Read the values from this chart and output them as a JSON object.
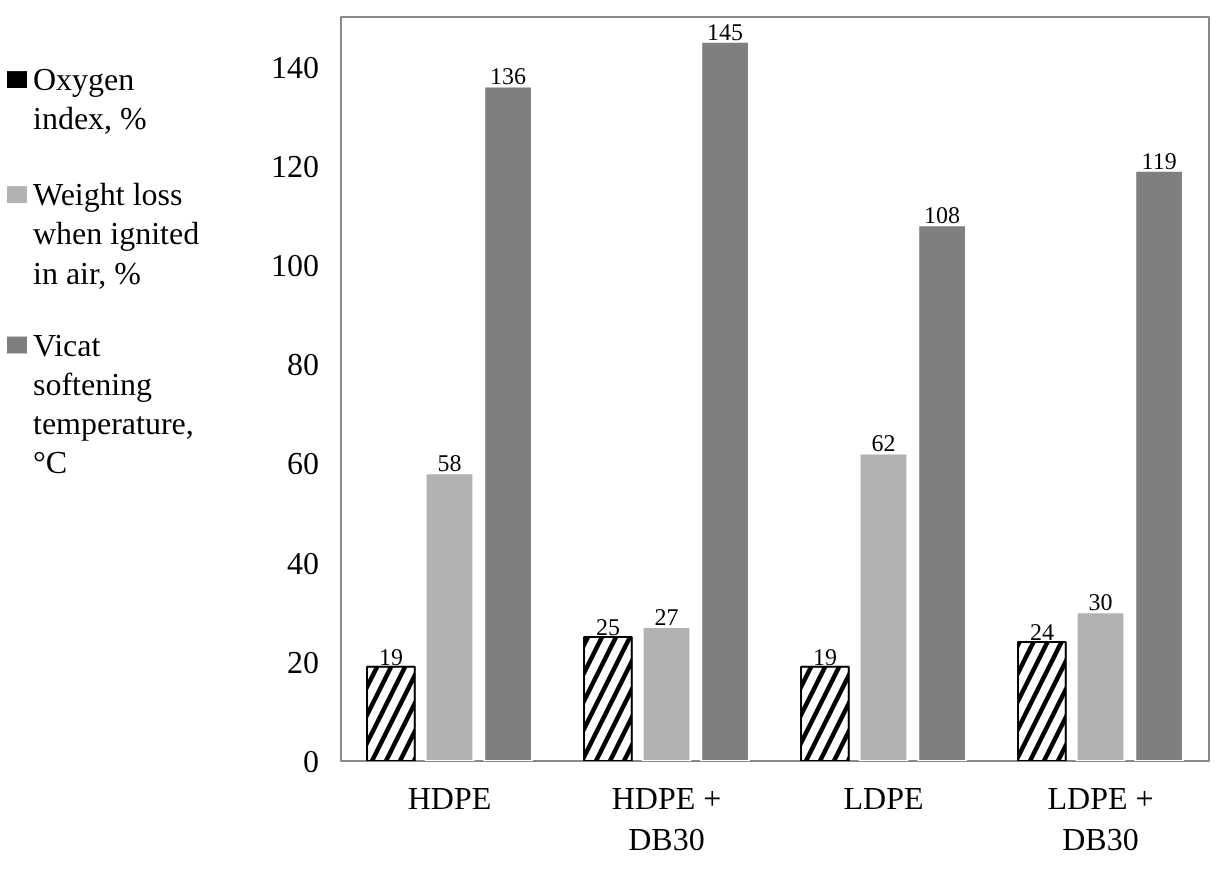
{
  "chart_data": {
    "type": "bar",
    "categories": [
      "HDPE",
      "HDPE + DB30",
      "LDPE",
      "LDPE + DB30"
    ],
    "series": [
      {
        "name": "Oxygen index, %",
        "color": "#000000",
        "values": [
          19,
          25,
          19,
          24
        ]
      },
      {
        "name": "Weight loss when ignited in air, %",
        "color": "#b2b2b2",
        "values": [
          58,
          27,
          62,
          30
        ]
      },
      {
        "name": "Vicat softening temperature, °C",
        "color": "#7f7f7f",
        "values": [
          136,
          145,
          108,
          119
        ]
      }
    ],
    "ylim": [
      0,
      150
    ],
    "yticks": [
      0,
      20,
      40,
      60,
      80,
      100,
      120,
      140
    ],
    "data_labels": true,
    "legend": "left",
    "grid": false
  }
}
